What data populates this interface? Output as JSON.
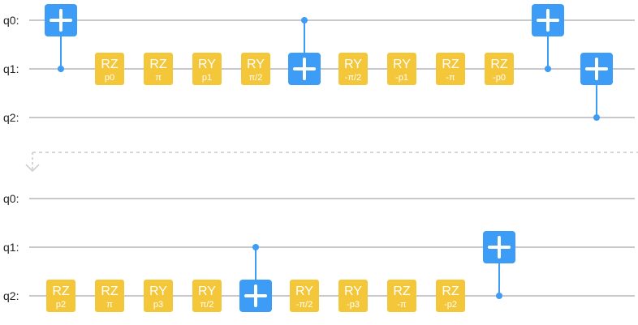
{
  "colors": {
    "wire": "#c8c8cc",
    "rotation_gate": "#f4c73a",
    "cnot_gate": "#3d9cf5",
    "connector": "#3d9cf5",
    "label": "#222222",
    "separator": "#c8c8cc"
  },
  "separator_icon": "chevron-down-icon",
  "sections": [
    {
      "qubits": [
        "q0:",
        "q1:",
        "q2:"
      ],
      "cnots": [
        {
          "col": 0,
          "control": 1,
          "target": 0
        },
        {
          "col": 5,
          "control": 0,
          "target": 1
        },
        {
          "col": 10,
          "control": 1,
          "target": 0
        },
        {
          "col": 11,
          "control": 2,
          "target": 1
        }
      ],
      "rotations": [
        {
          "col": 1,
          "qubit": 1,
          "name": "RZ",
          "param": "p0"
        },
        {
          "col": 2,
          "qubit": 1,
          "name": "RZ",
          "param": "π"
        },
        {
          "col": 3,
          "qubit": 1,
          "name": "RY",
          "param": "p1"
        },
        {
          "col": 4,
          "qubit": 1,
          "name": "RY",
          "param": "π/2"
        },
        {
          "col": 6,
          "qubit": 1,
          "name": "RY",
          "param": "-π/2"
        },
        {
          "col": 7,
          "qubit": 1,
          "name": "RY",
          "param": "-p1"
        },
        {
          "col": 8,
          "qubit": 1,
          "name": "RZ",
          "param": "-π"
        },
        {
          "col": 9,
          "qubit": 1,
          "name": "RZ",
          "param": "-p0"
        }
      ]
    },
    {
      "qubits": [
        "q0:",
        "q1:",
        "q2:"
      ],
      "cnots": [
        {
          "col": 4,
          "control": 1,
          "target": 2
        },
        {
          "col": 9,
          "control": 2,
          "target": 1
        }
      ],
      "rotations": [
        {
          "col": 0,
          "qubit": 2,
          "name": "RZ",
          "param": "p2"
        },
        {
          "col": 1,
          "qubit": 2,
          "name": "RZ",
          "param": "π"
        },
        {
          "col": 2,
          "qubit": 2,
          "name": "RY",
          "param": "p3"
        },
        {
          "col": 3,
          "qubit": 2,
          "name": "RY",
          "param": "π/2"
        },
        {
          "col": 5,
          "qubit": 2,
          "name": "RY",
          "param": "-π/2"
        },
        {
          "col": 6,
          "qubit": 2,
          "name": "RY",
          "param": "-p3"
        },
        {
          "col": 7,
          "qubit": 2,
          "name": "RZ",
          "param": "-π"
        },
        {
          "col": 8,
          "qubit": 2,
          "name": "RZ",
          "param": "-p2"
        }
      ]
    }
  ]
}
